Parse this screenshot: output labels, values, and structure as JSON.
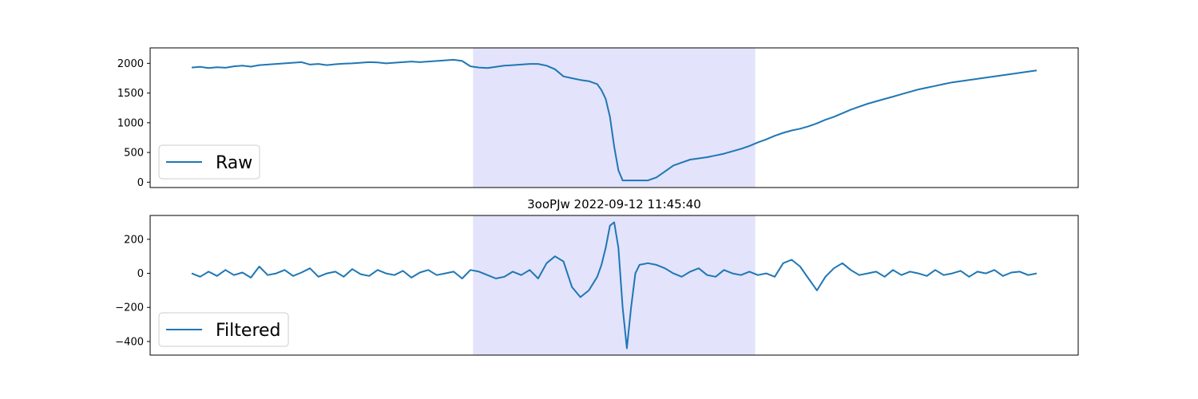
{
  "chart_data": [
    {
      "type": "line",
      "title": "",
      "xlabel": "",
      "ylabel": "",
      "xlim": [
        0,
        1000
      ],
      "ylim": [
        -90,
        2260
      ],
      "yticks": [
        0,
        500,
        1000,
        1500,
        2000
      ],
      "ytick_labels": [
        "0",
        "500",
        "1000",
        "1500",
        "2000"
      ],
      "x_axis_ticks_visible": false,
      "grid": false,
      "legend_location": "lower-left",
      "highlight_span": [
        333,
        667
      ],
      "highlight_color": "#e3e3fb",
      "series": [
        {
          "name": "Raw",
          "color": "#1f77b4",
          "x": [
            0,
            10,
            20,
            30,
            40,
            50,
            60,
            70,
            80,
            90,
            100,
            110,
            120,
            130,
            140,
            150,
            160,
            170,
            180,
            190,
            200,
            210,
            220,
            230,
            240,
            250,
            260,
            270,
            280,
            290,
            300,
            310,
            320,
            330,
            340,
            350,
            360,
            370,
            380,
            390,
            400,
            410,
            420,
            430,
            440,
            450,
            460,
            470,
            480,
            485,
            490,
            495,
            500,
            505,
            510,
            520,
            530,
            540,
            550,
            560,
            570,
            580,
            590,
            600,
            610,
            620,
            630,
            640,
            650,
            660,
            670,
            680,
            690,
            700,
            710,
            720,
            730,
            740,
            750,
            760,
            770,
            780,
            790,
            800,
            810,
            820,
            830,
            840,
            850,
            860,
            870,
            880,
            890,
            900,
            910,
            920,
            930,
            940,
            950,
            960,
            970,
            980,
            990,
            1000
          ],
          "y": [
            1930,
            1940,
            1920,
            1935,
            1925,
            1950,
            1960,
            1945,
            1970,
            1980,
            1990,
            2000,
            2010,
            2020,
            1980,
            1990,
            1970,
            1985,
            1995,
            2000,
            2010,
            2020,
            2015,
            2000,
            2010,
            2020,
            2030,
            2020,
            2030,
            2040,
            2050,
            2060,
            2040,
            1950,
            1930,
            1920,
            1940,
            1960,
            1970,
            1980,
            1990,
            1990,
            1960,
            1900,
            1780,
            1750,
            1720,
            1700,
            1650,
            1550,
            1400,
            1100,
            600,
            200,
            30,
            30,
            30,
            30,
            80,
            180,
            280,
            330,
            380,
            400,
            420,
            450,
            480,
            520,
            560,
            610,
            670,
            720,
            780,
            830,
            870,
            900,
            940,
            990,
            1050,
            1100,
            1160,
            1220,
            1270,
            1320,
            1360,
            1400,
            1440,
            1480,
            1520,
            1560,
            1590,
            1620,
            1650,
            1680,
            1700,
            1720,
            1740,
            1760,
            1780,
            1800,
            1820,
            1840,
            1860,
            1880
          ]
        }
      ]
    },
    {
      "type": "line",
      "title": "3ooPJw 2022-09-12 11:45:40",
      "xlabel": "",
      "ylabel": "",
      "xlim": [
        0,
        1000
      ],
      "ylim": [
        -480,
        340
      ],
      "yticks": [
        -400,
        -200,
        0,
        200
      ],
      "ytick_labels": [
        "−400",
        "−200",
        "0",
        "200"
      ],
      "x_axis_ticks_visible": false,
      "grid": false,
      "legend_location": "lower-left",
      "highlight_span": [
        333,
        667
      ],
      "highlight_color": "#e3e3fb",
      "series": [
        {
          "name": "Filtered",
          "color": "#1f77b4",
          "x": [
            0,
            10,
            20,
            30,
            40,
            50,
            60,
            70,
            80,
            90,
            100,
            110,
            120,
            130,
            140,
            150,
            160,
            170,
            180,
            190,
            200,
            210,
            220,
            230,
            240,
            250,
            260,
            270,
            280,
            290,
            300,
            310,
            320,
            330,
            340,
            350,
            360,
            370,
            380,
            390,
            400,
            410,
            420,
            430,
            440,
            450,
            460,
            470,
            480,
            485,
            490,
            495,
            500,
            505,
            510,
            515,
            520,
            525,
            530,
            540,
            550,
            560,
            570,
            580,
            590,
            600,
            610,
            620,
            630,
            640,
            650,
            660,
            670,
            680,
            690,
            700,
            710,
            720,
            730,
            740,
            750,
            760,
            770,
            780,
            790,
            800,
            810,
            820,
            830,
            840,
            850,
            860,
            870,
            880,
            890,
            900,
            910,
            920,
            930,
            940,
            950,
            960,
            970,
            980,
            990,
            1000
          ],
          "y": [
            0,
            -20,
            10,
            -15,
            20,
            -10,
            5,
            -25,
            40,
            -10,
            0,
            20,
            -15,
            5,
            30,
            -20,
            0,
            10,
            -20,
            25,
            -5,
            -15,
            20,
            0,
            -10,
            15,
            -25,
            5,
            20,
            -10,
            0,
            10,
            -30,
            20,
            10,
            -10,
            -30,
            -20,
            10,
            -10,
            20,
            -30,
            60,
            100,
            70,
            -80,
            -140,
            -100,
            -20,
            50,
            150,
            280,
            300,
            150,
            -200,
            -440,
            -200,
            0,
            50,
            60,
            50,
            30,
            0,
            -20,
            10,
            30,
            -10,
            -20,
            20,
            0,
            -10,
            10,
            -10,
            0,
            -20,
            60,
            80,
            40,
            -30,
            -100,
            -20,
            30,
            60,
            20,
            -10,
            0,
            10,
            -20,
            20,
            -10,
            10,
            0,
            -15,
            20,
            -10,
            0,
            15,
            -20,
            10,
            0,
            20,
            -15,
            5,
            10,
            -10,
            0
          ]
        }
      ]
    }
  ]
}
